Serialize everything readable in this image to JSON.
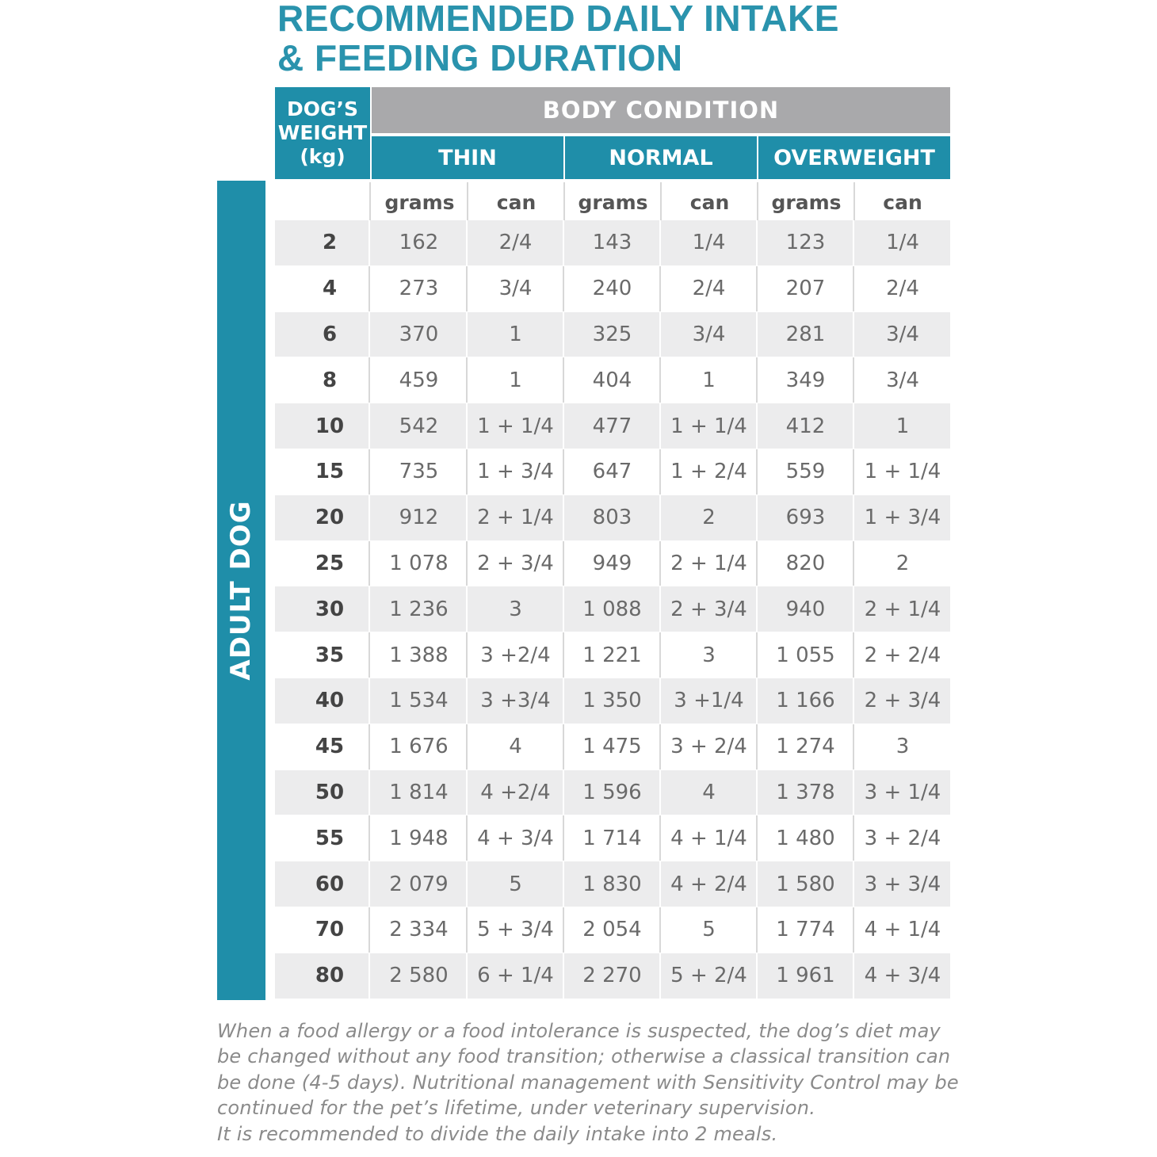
{
  "title": [
    "RECOMMENDED DAILY INTAKE",
    "& FEEDING DURATION"
  ],
  "table": {
    "weight_header": [
      "DOG’S",
      "WEIGHT",
      "(kg)"
    ],
    "body_condition": "BODY CONDITION",
    "groups": [
      "THIN",
      "NORMAL",
      "OVERWEIGHT"
    ],
    "subheaders": [
      "grams",
      "can",
      "grams",
      "can",
      "grams",
      "can"
    ],
    "side_label": "ADULT DOG",
    "rows": [
      [
        "2",
        "162",
        "2/4",
        "143",
        "1/4",
        "123",
        "1/4"
      ],
      [
        "4",
        "273",
        "3/4",
        "240",
        "2/4",
        "207",
        "2/4"
      ],
      [
        "6",
        "370",
        "1",
        "325",
        "3/4",
        "281",
        "3/4"
      ],
      [
        "8",
        "459",
        "1",
        "404",
        "1",
        "349",
        "3/4"
      ],
      [
        "10",
        "542",
        "1 + 1/4",
        "477",
        "1 + 1/4",
        "412",
        "1"
      ],
      [
        "15",
        "735",
        "1 + 3/4",
        "647",
        "1 + 2/4",
        "559",
        "1 + 1/4"
      ],
      [
        "20",
        "912",
        "2 + 1/4",
        "803",
        "2",
        "693",
        "1 + 3/4"
      ],
      [
        "25",
        "1 078",
        "2 + 3/4",
        "949",
        "2 + 1/4",
        "820",
        "2"
      ],
      [
        "30",
        "1 236",
        "3",
        "1 088",
        "2 + 3/4",
        "940",
        "2 + 1/4"
      ],
      [
        "35",
        "1 388",
        "3 +2/4",
        "1 221",
        "3",
        "1 055",
        "2 + 2/4"
      ],
      [
        "40",
        "1 534",
        "3 +3/4",
        "1 350",
        "3 +1/4",
        "1 166",
        "2 + 3/4"
      ],
      [
        "45",
        "1 676",
        "4",
        "1 475",
        "3 + 2/4",
        "1 274",
        "3"
      ],
      [
        "50",
        "1 814",
        "4 +2/4",
        "1 596",
        "4",
        "1 378",
        "3 + 1/4"
      ],
      [
        "55",
        "1 948",
        "4 + 3/4",
        "1 714",
        "4 + 1/4",
        "1 480",
        "3 + 2/4"
      ],
      [
        "60",
        "2 079",
        "5",
        "1 830",
        "4 + 2/4",
        "1 580",
        "3 + 3/4"
      ],
      [
        "70",
        "2 334",
        "5 + 3/4",
        "2 054",
        "5",
        "1 774",
        "4 + 1/4"
      ],
      [
        "80",
        "2 580",
        "6 + 1/4",
        "2 270",
        "5 + 2/4",
        "1 961",
        "4 + 3/4"
      ]
    ]
  },
  "note": [
    "When a food allergy or a food intolerance is suspected, the dog’s diet may",
    "be changed without any food transition; otherwise a classical transition can",
    "be done (4-5 days). Nutritional management with Sensitivity Control may be",
    "continued for the pet’s lifetime, under veterinary supervision.",
    "It is recommended to divide the daily intake into 2 meals."
  ]
}
